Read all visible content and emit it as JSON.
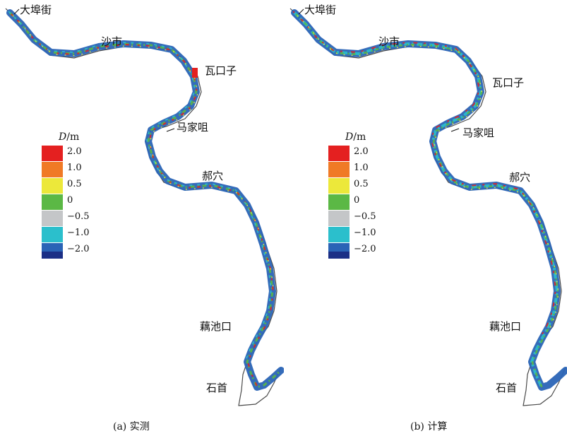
{
  "legend": {
    "symbol": "D",
    "unit": "/m",
    "items": [
      {
        "label": "2.0",
        "color": "#e42020"
      },
      {
        "label": "1.0",
        "color": "#f07a26"
      },
      {
        "label": "0.5",
        "color": "#ece83a"
      },
      {
        "label": "0",
        "color": "#5bb845"
      },
      {
        "label": "−0.5",
        "color": "#c4c6c8"
      },
      {
        "label": "−1.0",
        "color": "#2bbfcc"
      },
      {
        "label": "−2.0",
        "color": "#2a64b6"
      }
    ],
    "bottom_color": "#1b2f86"
  },
  "places": {
    "dabujie": "大埠街",
    "shashi": "沙市",
    "wakouzi": "瓦口子",
    "majiazui": "马家咀",
    "haoxue": "郝穴",
    "ouchikou": "藕池口",
    "shishou": "石首"
  },
  "panels": {
    "a": {
      "caption": "(a) 实测"
    },
    "b": {
      "caption": "(b) 计算"
    }
  }
}
